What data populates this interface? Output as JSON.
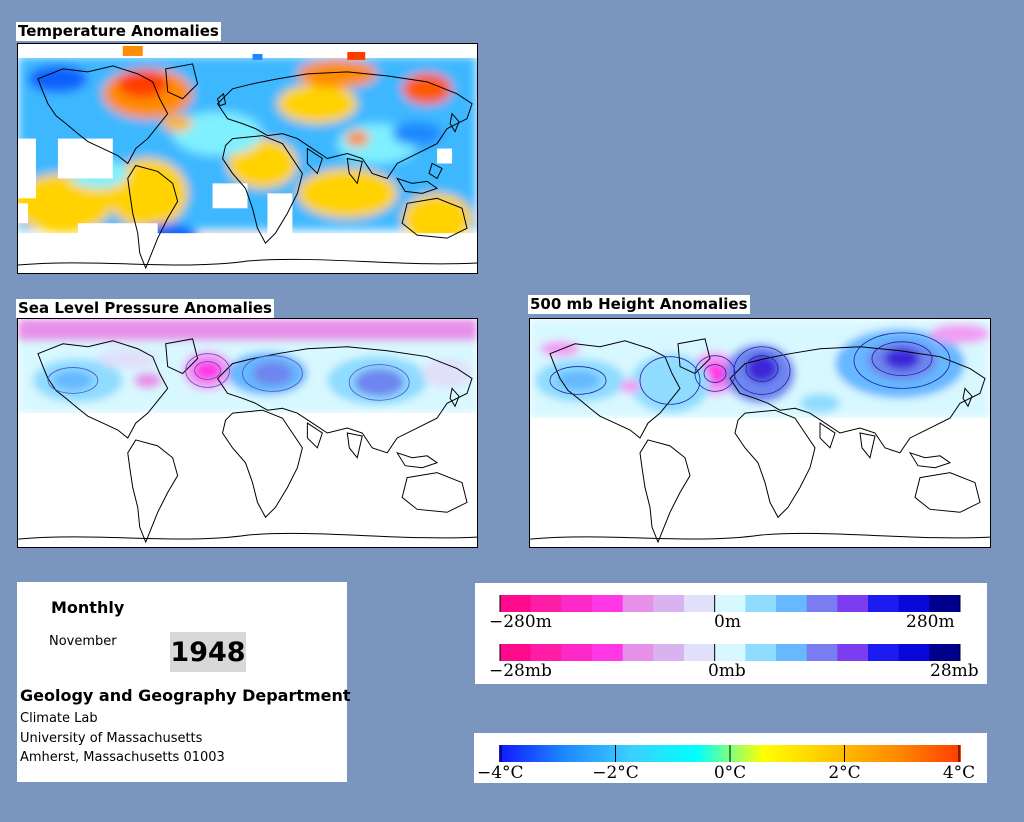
{
  "panels": {
    "temperature": {
      "title": "Temperature Anomalies"
    },
    "slp": {
      "title": "Sea Level Pressure Anomalies"
    },
    "height": {
      "title": "500 mb Height Anomalies"
    }
  },
  "info": {
    "period": "Monthly",
    "month": "November",
    "year": "1948",
    "department": "Geology and Geography Department",
    "lab": "Climate Lab",
    "university": "University of Massachusetts",
    "address": "Amherst, Massachusetts 01003"
  },
  "legends": {
    "height": {
      "min_label": "−280m",
      "mid_label": "0m",
      "max_label": "280m",
      "colors": [
        "#ff0a8c",
        "#ff1ca6",
        "#ff28c8",
        "#ff37e6",
        "#e690ea",
        "#d9b3f0",
        "#e0e0fa",
        "#d8f8ff",
        "#8fdcff",
        "#66b8ff",
        "#7a7cf2",
        "#7c3cf0",
        "#1c1cf2",
        "#0808d8",
        "#00008c"
      ]
    },
    "pressure": {
      "min_label": "−28mb",
      "mid_label": "0mb",
      "max_label": "28mb",
      "colors": [
        "#ff0a8c",
        "#ff1ca6",
        "#ff28c8",
        "#ff37e6",
        "#e690ea",
        "#d9b3f0",
        "#e0e0fa",
        "#d8f8ff",
        "#8fdcff",
        "#66b8ff",
        "#7a7cf2",
        "#7c3cf0",
        "#1c1cf2",
        "#0808d8",
        "#00008c"
      ]
    },
    "temperature": {
      "tick_labels": [
        "−4°C",
        "−2°C",
        "0°C",
        "2°C",
        "4°C"
      ],
      "gradient_stops": [
        "#1018ff",
        "#1e88ff",
        "#3ccfff",
        "#00ffff",
        "#ffff00",
        "#ffc800",
        "#ff8c00",
        "#ff3c00"
      ]
    }
  },
  "colors": {
    "background": "#7a96bf",
    "cold": "#3cb0ff",
    "warm": "#ffd200",
    "hot": "#ff3c00",
    "cyan": "#7ff0ff",
    "low_pressure": "#6e86ef",
    "high_pressure": "#f09ef4"
  }
}
